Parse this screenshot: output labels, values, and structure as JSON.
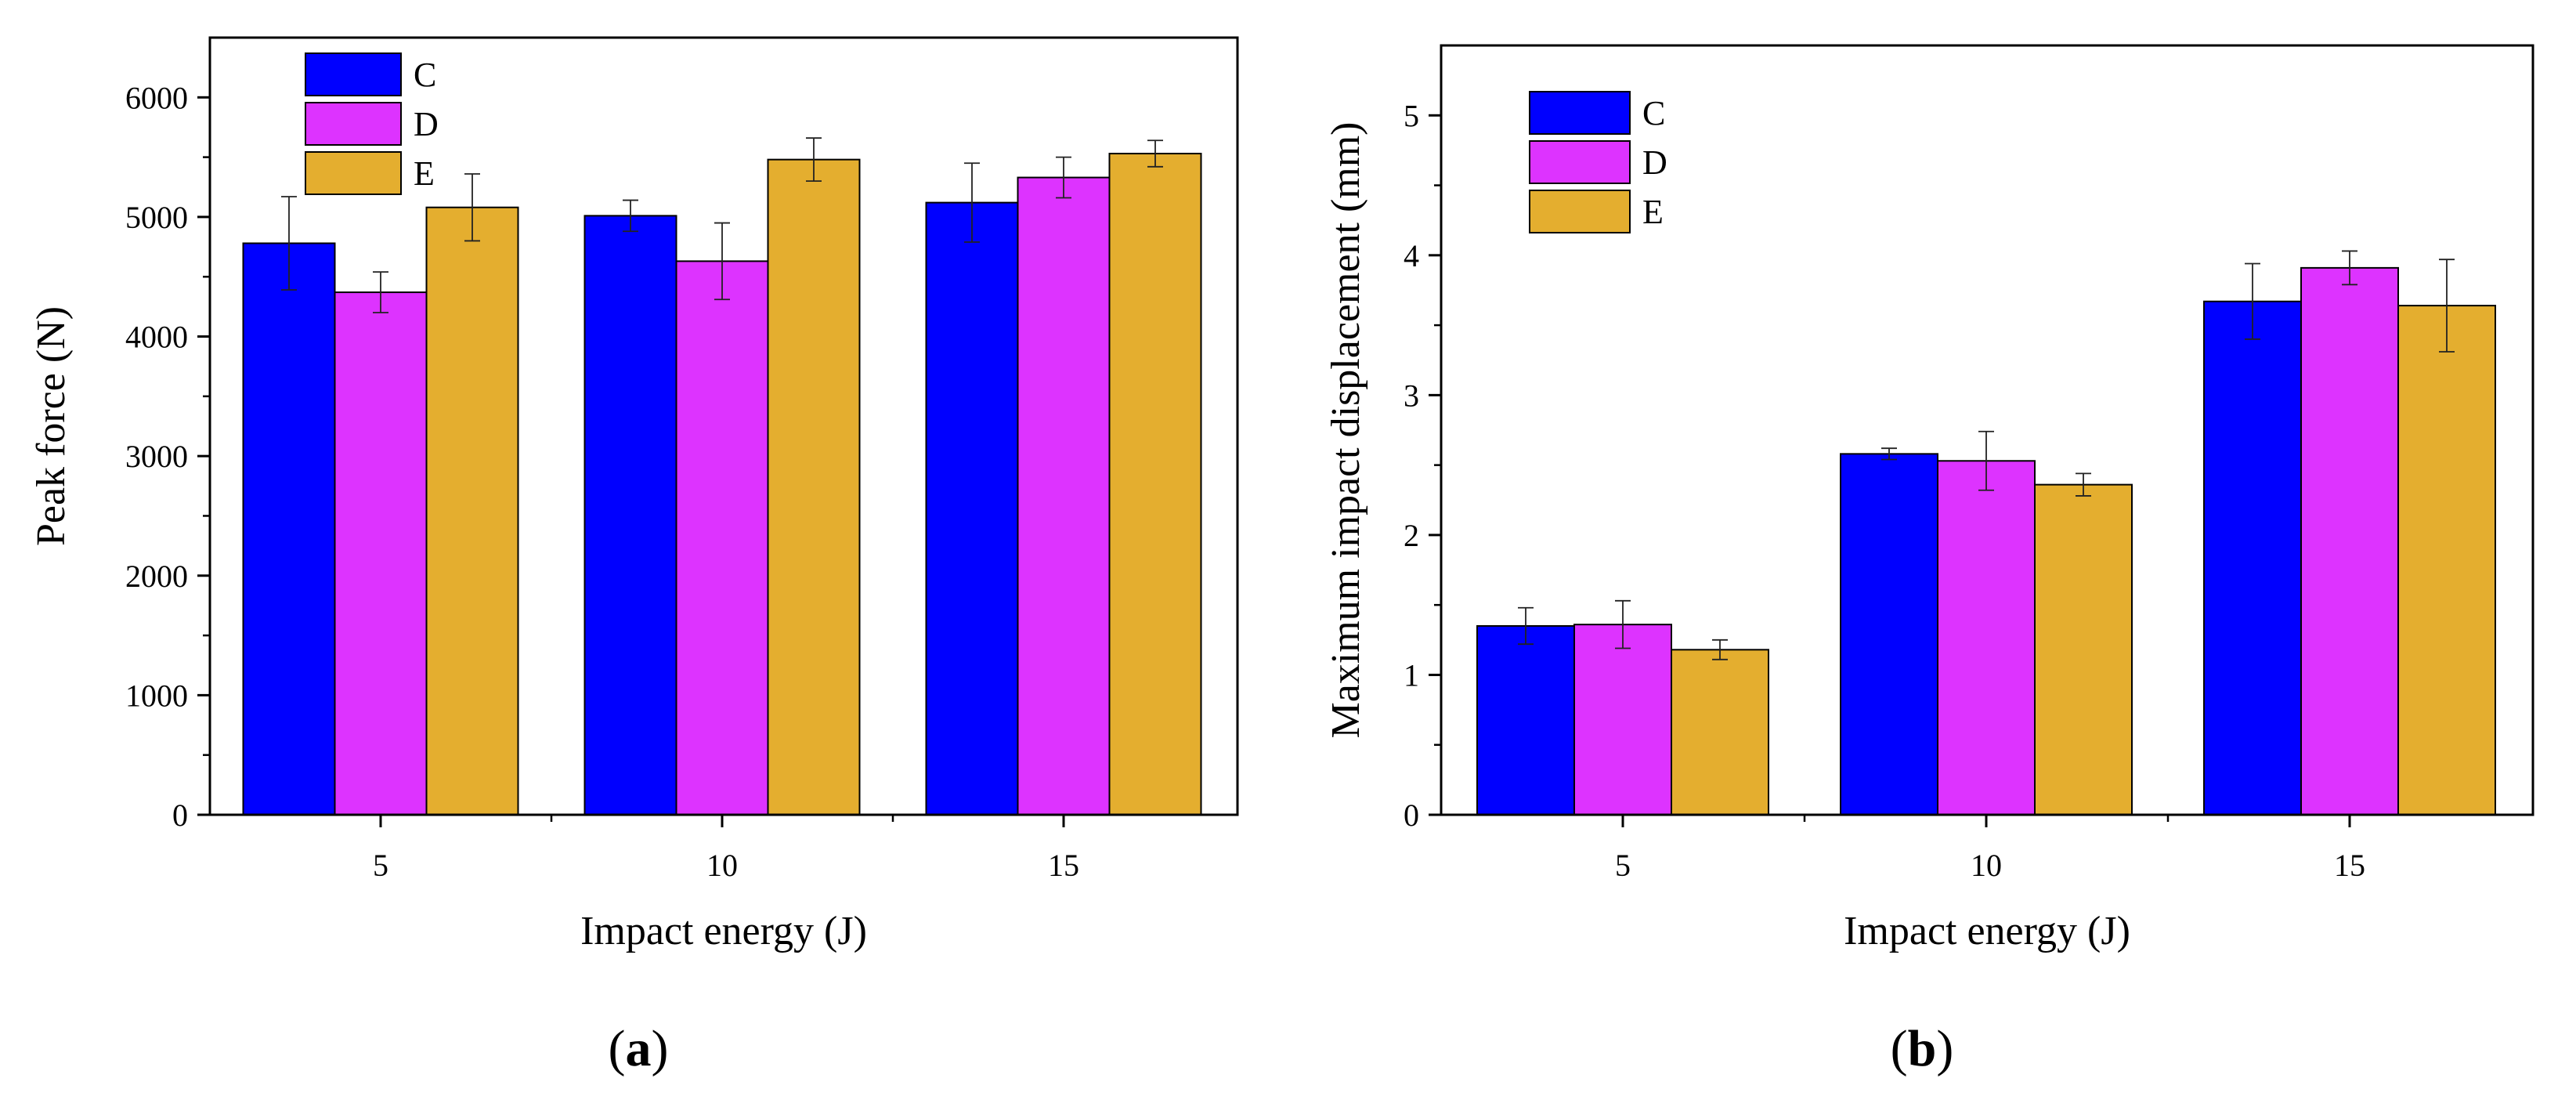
{
  "chart_data": [
    {
      "type": "bar",
      "panel_label": "a",
      "title": "",
      "xlabel": "Impact energy (J)",
      "ylabel": "Peak force (N)",
      "categories": [
        "5",
        "10",
        "15"
      ],
      "ylim": [
        0,
        6500
      ],
      "yticks": [
        0,
        1000,
        2000,
        3000,
        4000,
        5000,
        6000
      ],
      "grid": false,
      "legend_position": "top-left",
      "series": [
        {
          "name": "C",
          "color": "#0000ff",
          "values": [
            4780,
            5010,
            5120
          ],
          "errors": [
            390,
            130,
            330
          ]
        },
        {
          "name": "D",
          "color": "#dd33ff",
          "values": [
            4370,
            4630,
            5330
          ],
          "errors": [
            170,
            320,
            170
          ]
        },
        {
          "name": "E",
          "color": "#e4ae2f",
          "values": [
            5080,
            5480,
            5530
          ],
          "errors": [
            280,
            180,
            110
          ]
        }
      ]
    },
    {
      "type": "bar",
      "panel_label": "b",
      "title": "",
      "xlabel": "Impact energy (J)",
      "ylabel": "Maximum impact displacement (mm)",
      "categories": [
        "5",
        "10",
        "15"
      ],
      "ylim": [
        0,
        5.5
      ],
      "yticks": [
        0,
        1,
        2,
        3,
        4,
        5
      ],
      "grid": false,
      "legend_position": "top-left",
      "series": [
        {
          "name": "C",
          "color": "#0000ff",
          "values": [
            1.35,
            2.58,
            3.67
          ],
          "errors": [
            0.13,
            0.04,
            0.27
          ]
        },
        {
          "name": "D",
          "color": "#dd33ff",
          "values": [
            1.36,
            2.53,
            3.91
          ],
          "errors": [
            0.17,
            0.21,
            0.12
          ]
        },
        {
          "name": "E",
          "color": "#e4ae2f",
          "values": [
            1.18,
            2.36,
            3.64
          ],
          "errors": [
            0.07,
            0.08,
            0.33
          ]
        }
      ]
    }
  ]
}
